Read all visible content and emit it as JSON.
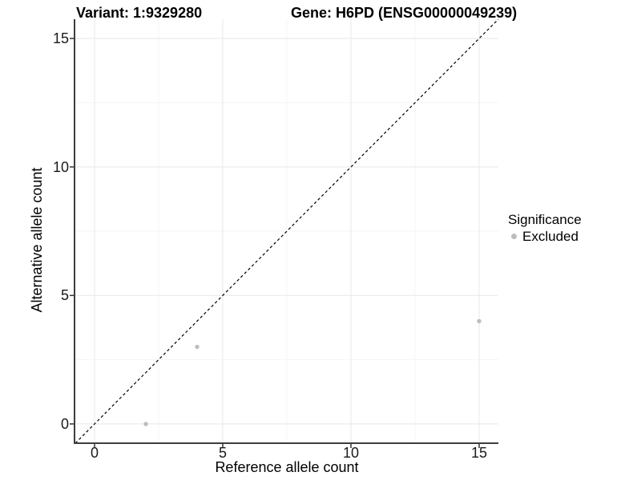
{
  "chart_data": {
    "type": "scatter",
    "title_left": "Variant: 1:9329280",
    "title_right": "Gene: H6PD (ENSG00000049239)",
    "xlabel": "Reference allele count",
    "ylabel": "Alternative allele count",
    "xlim": [
      -0.75,
      15.75
    ],
    "ylim": [
      -0.75,
      15.75
    ],
    "x_ticks": [
      0,
      5,
      10,
      15
    ],
    "y_ticks": [
      0,
      5,
      10,
      15
    ],
    "x_minor_ticks": [
      2.5,
      7.5,
      12.5
    ],
    "y_minor_ticks": [
      2.5,
      7.5,
      12.5
    ],
    "grid": true,
    "identity_line": {
      "style": "dashed",
      "color": "#000000",
      "from": [
        -0.75,
        -0.75
      ],
      "to": [
        15.75,
        15.75
      ]
    },
    "series": [
      {
        "name": "Excluded",
        "color": "#bdbdbd",
        "point_radius": 2.7,
        "points": [
          {
            "x": 2,
            "y": 0
          },
          {
            "x": 4,
            "y": 3
          },
          {
            "x": 15,
            "y": 4
          }
        ]
      }
    ],
    "legend": {
      "title": "Significance",
      "position": "right",
      "items": [
        {
          "label": "Excluded",
          "color": "#bdbdbd"
        }
      ]
    },
    "colors": {
      "axis_line": "#3d3d3d",
      "tick_mark": "#333333",
      "major_grid": "#e8e8e8",
      "minor_grid": "#f4f4f4",
      "background": "#ffffff"
    }
  }
}
